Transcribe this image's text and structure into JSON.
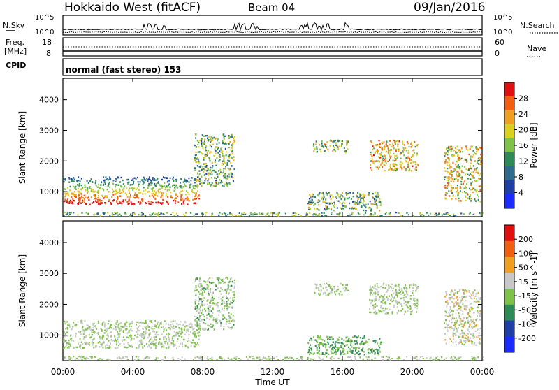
{
  "header": {
    "station": "Hokkaido West (fitACF)",
    "beam": "Beam 04",
    "date": "09/Jan/2016"
  },
  "strip": {
    "nsky_label": "N.Sky",
    "nsearch_label": "N.Search",
    "noise_ticks_left": [
      "10^5",
      "10^0"
    ],
    "noise_ticks_right": [
      "10^5",
      "10^0"
    ],
    "freq_label_top": "Freq.",
    "freq_label_bottom": "[MHz]",
    "freq_ticks": [
      "18",
      "8"
    ],
    "nave_label": "Nave",
    "nave_ticks": [
      "60",
      "0"
    ],
    "cpid_label": "CPID",
    "cpid_text": "normal (fast stereo) 153"
  },
  "chart_data": [
    {
      "type": "heatmap",
      "title": "",
      "xlabel": "Time UT",
      "ylabel": "Slant Range [km]",
      "x_ticks": [
        "00:00",
        "04:00",
        "08:00",
        "12:00",
        "16:00",
        "20:00",
        "00:00"
      ],
      "xlim_hours": [
        0,
        24
      ],
      "y_ticks": [
        4000,
        3000,
        2000,
        1000
      ],
      "ylim": [
        180,
        4700
      ],
      "colorbar": {
        "label": "Power [dB]",
        "ticks": [
          "28",
          "24",
          "20",
          "16",
          "12",
          "8",
          "4"
        ],
        "range": [
          0,
          30
        ],
        "colors": [
          "#1a2cff",
          "#2040a8",
          "#2e6b8c",
          "#2e8b57",
          "#7fc24a",
          "#d9d020",
          "#f0a020",
          "#f06010",
          "#e01010"
        ]
      },
      "regions": [
        {
          "t": [
            0,
            7.8
          ],
          "r": [
            600,
            1500
          ],
          "value": 24
        },
        {
          "t": [
            7.5,
            9.8
          ],
          "r": [
            1200,
            2900
          ],
          "value": 14
        },
        {
          "t": [
            14.3,
            16.3
          ],
          "r": [
            2300,
            2700
          ],
          "value": 16
        },
        {
          "t": [
            14.0,
            18.2
          ],
          "r": [
            400,
            1000
          ],
          "value": 14
        },
        {
          "t": [
            17.5,
            20.3
          ],
          "r": [
            1700,
            2700
          ],
          "value": 20
        },
        {
          "t": [
            21.8,
            23.9
          ],
          "r": [
            700,
            2500
          ],
          "value": 18
        }
      ]
    },
    {
      "type": "heatmap",
      "title": "",
      "xlabel": "Time UT",
      "ylabel": "Slant Range [km]",
      "x_ticks": [
        "00:00",
        "04:00",
        "08:00",
        "12:00",
        "16:00",
        "20:00",
        "00:00"
      ],
      "xlim_hours": [
        0,
        24
      ],
      "y_ticks": [
        4000,
        3000,
        2000,
        1000
      ],
      "ylim": [
        180,
        4700
      ],
      "colorbar": {
        "label": "Velocity [m s^-1]",
        "ticks": [
          "200",
          "100",
          "50",
          "15",
          "-15",
          "-50",
          "-100",
          "-200"
        ],
        "range": [
          -250,
          250
        ],
        "colors": [
          "#1a2cff",
          "#2040a8",
          "#2e8b57",
          "#7fc24a",
          "#c8c8c8",
          "#f0a020",
          "#f06010",
          "#e01010"
        ]
      },
      "regions": [
        {
          "t": [
            0,
            7.8
          ],
          "r": [
            600,
            1500
          ],
          "value": 0
        },
        {
          "t": [
            7.5,
            9.8
          ],
          "r": [
            1200,
            2900
          ],
          "value": -20
        },
        {
          "t": [
            14.3,
            16.3
          ],
          "r": [
            2300,
            2700
          ],
          "value": 0
        },
        {
          "t": [
            14.0,
            18.2
          ],
          "r": [
            400,
            1000
          ],
          "value": -60
        },
        {
          "t": [
            17.5,
            20.3
          ],
          "r": [
            1700,
            2700
          ],
          "value": 0
        },
        {
          "t": [
            21.8,
            23.9
          ],
          "r": [
            700,
            2500
          ],
          "value": 30
        }
      ]
    }
  ]
}
